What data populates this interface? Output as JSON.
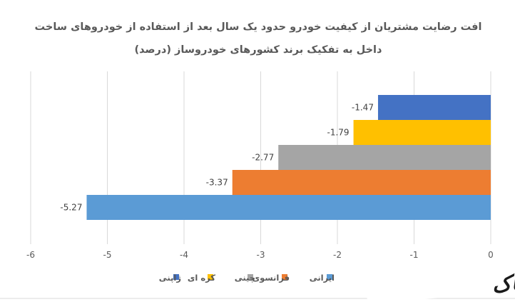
{
  "chart_data": {
    "type": "bar",
    "orientation": "horizontal",
    "title_line1": "افت رضایت مشتریان از کیفیت خودرو حدود یک سال بعد از استفاده از خودروهای ساخت",
    "title_line2": "داخل به تفکیک برند کشورهای خودروساز (درصد)",
    "series": [
      {
        "name": "ژاپنی",
        "value": -1.47,
        "label": "-1.47",
        "color": "#4472C4"
      },
      {
        "name": "کره ای",
        "value": -1.79,
        "label": "-1.79",
        "color": "#FFC000"
      },
      {
        "name": "چینی",
        "value": -2.77,
        "label": "-2.77",
        "color": "#A5A5A5"
      },
      {
        "name": "فرانسوی",
        "value": -3.37,
        "label": "-3.37",
        "color": "#ED7D31"
      },
      {
        "name": "ایرانی",
        "value": -5.27,
        "label": "-5.27",
        "color": "#5B9BD5"
      }
    ],
    "xlim": [
      -6,
      0
    ],
    "x_ticks": [
      "-6",
      "-5",
      "-4",
      "-3",
      "-2",
      "-1",
      "0"
    ],
    "grid": true,
    "legend_position": "bottom"
  },
  "watermark": {
    "text": "تابناک"
  }
}
